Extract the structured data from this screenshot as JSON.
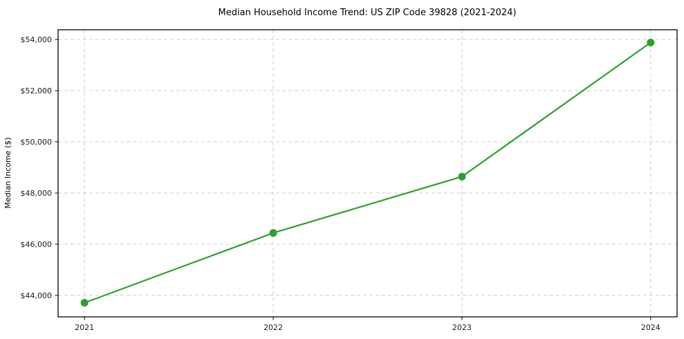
{
  "title": "Median Household Income Trend: US ZIP Code 39828 (2021-2024)",
  "chart_data": {
    "type": "line",
    "title": "Median Household Income Trend: US ZIP Code 39828 (2021-2024)",
    "xlabel": "",
    "ylabel": "Median Income ($)",
    "x": [
      2021,
      2022,
      2023,
      2024
    ],
    "series": [
      {
        "name": "Median Household Income",
        "values": [
          43710,
          46440,
          48640,
          53880
        ]
      }
    ],
    "xticks": [
      2021,
      2022,
      2023,
      2024
    ],
    "xtick_labels": [
      "2021",
      "2022",
      "2023",
      "2024"
    ],
    "yticks": [
      44000,
      46000,
      48000,
      50000,
      52000,
      54000
    ],
    "ytick_labels": [
      "$44,000",
      "$46,000",
      "$48,000",
      "$50,000",
      "$52,000",
      "$54,000"
    ],
    "xlim": [
      2020.86,
      2024.14
    ],
    "ylim": [
      43160,
      54380
    ],
    "grid": true,
    "legend": "none",
    "colors": {
      "line": "#2ca02c",
      "marker": "#2ca02c",
      "grid": "#cccccc",
      "spine": "#000000",
      "tick": "#000000",
      "background": "#ffffff"
    },
    "style": {
      "line_width": 2.2,
      "marker_radius": 5.5,
      "grid_dash": "5,4"
    }
  },
  "layout_note": "single line chart with circular markers, dashed grid, boxed axes"
}
